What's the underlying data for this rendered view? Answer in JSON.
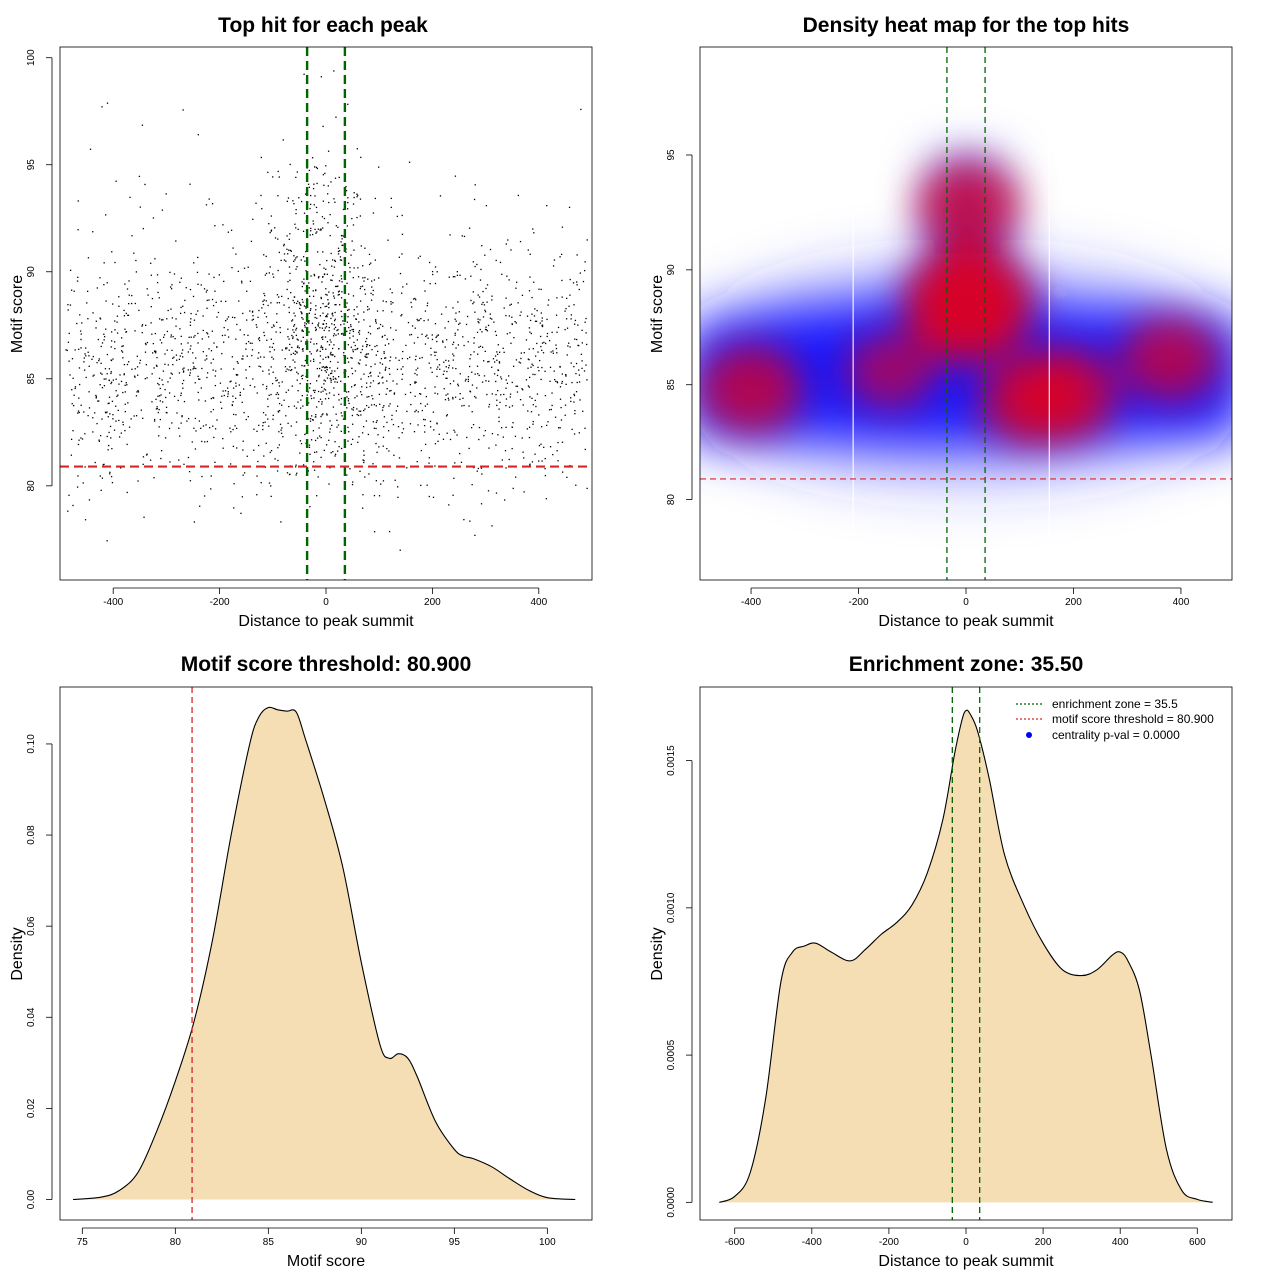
{
  "colors": {
    "points": "#000000",
    "threshold_red": "#d62728",
    "zone_green": "#006400",
    "density_fill": "#f5deb3",
    "heat_blue": "#0000ff",
    "heat_red": "#e0001e"
  },
  "chart_data": [
    {
      "id": "scatter",
      "type": "scatter",
      "title": "Top hit for each peak",
      "xlabel": "Distance to peak summit",
      "ylabel": "Motif score",
      "xlim": [
        -500,
        500
      ],
      "ylim": [
        75.6,
        100.5
      ],
      "xticks": [
        -400,
        -200,
        0,
        200,
        400
      ],
      "yticks": [
        80,
        85,
        90,
        95,
        100
      ],
      "threshold": 80.9,
      "zone": [
        -35.5,
        35.5
      ],
      "n_points": 2400
    },
    {
      "id": "heatmap",
      "type": "heatmap",
      "title": "Density heat map for the top hits",
      "xlabel": "Distance to peak summit",
      "ylabel": "Motif score",
      "xlim": [
        -495,
        495
      ],
      "ylim": [
        76.5,
        99.7
      ],
      "xticks": [
        -400,
        -200,
        0,
        200,
        400
      ],
      "yticks": [
        80,
        85,
        90,
        95
      ],
      "threshold": 80.9,
      "zone": [
        -35.5,
        35.5
      ],
      "white_lines_x": [
        -210,
        155
      ],
      "hotspots": [
        {
          "x": 5,
          "y": 88.5,
          "weight": 1.0
        },
        {
          "x": 5,
          "y": 92.8,
          "weight": 0.6
        },
        {
          "x": 180,
          "y": 84.6,
          "weight": 0.7
        },
        {
          "x": 120,
          "y": 84.3,
          "weight": 0.6
        },
        {
          "x": -400,
          "y": 84.8,
          "weight": 0.6
        },
        {
          "x": 380,
          "y": 86.1,
          "weight": 0.55
        },
        {
          "x": -140,
          "y": 85.6,
          "weight": 0.4
        }
      ]
    },
    {
      "id": "score_density",
      "type": "area",
      "title": "Motif score threshold: 80.900",
      "xlabel": "Motif score",
      "ylabel": "Density",
      "xlim": [
        73.8,
        102.4
      ],
      "ylim": [
        -0.0045,
        0.1125
      ],
      "xticks": [
        75,
        80,
        85,
        90,
        95,
        100
      ],
      "yticks": [
        0.0,
        0.02,
        0.04,
        0.06,
        0.08,
        0.1
      ],
      "ytick_labels": [
        "0.00",
        "0.02",
        "0.04",
        "0.06",
        "0.08",
        "0.10"
      ],
      "threshold": 80.9,
      "x": [
        74.5,
        76,
        77,
        78,
        79,
        80,
        81,
        82,
        83,
        84,
        84.5,
        85,
        85.5,
        86,
        86.5,
        87,
        88,
        89,
        90,
        91,
        91.5,
        92,
        92.5,
        93,
        94,
        95,
        95.5,
        96,
        97,
        98,
        99,
        100,
        101.5
      ],
      "y": [
        0.0,
        0.0005,
        0.002,
        0.006,
        0.015,
        0.026,
        0.039,
        0.057,
        0.08,
        0.1,
        0.106,
        0.108,
        0.1075,
        0.1072,
        0.107,
        0.101,
        0.088,
        0.073,
        0.052,
        0.034,
        0.031,
        0.032,
        0.031,
        0.027,
        0.017,
        0.011,
        0.0095,
        0.009,
        0.0072,
        0.0045,
        0.002,
        0.0004,
        0.0
      ]
    },
    {
      "id": "distance_density",
      "type": "area",
      "title": "Enrichment zone: 35.50",
      "xlabel": "Distance to peak summit",
      "ylabel": "Density",
      "xlim": [
        -690,
        690
      ],
      "ylim": [
        -6e-05,
        0.00175
      ],
      "xticks": [
        -600,
        -400,
        -200,
        0,
        200,
        400,
        600
      ],
      "yticks": [
        0.0,
        0.0005,
        0.001,
        0.0015
      ],
      "ytick_labels": [
        "0.0000",
        "0.0005",
        "0.0010",
        "0.0015"
      ],
      "zone": [
        -35.5,
        35.5
      ],
      "x": [
        -640,
        -600,
        -560,
        -520,
        -480,
        -450,
        -420,
        -390,
        -350,
        -300,
        -260,
        -220,
        -180,
        -140,
        -100,
        -60,
        -30,
        -10,
        0,
        10,
        30,
        60,
        100,
        150,
        200,
        250,
        300,
        340,
        380,
        400,
        420,
        450,
        480,
        520,
        560,
        600,
        640
      ],
      "y": [
        0.0,
        2e-05,
        0.0001,
        0.00035,
        0.00075,
        0.00085,
        0.00087,
        0.00088,
        0.00085,
        0.00082,
        0.00086,
        0.00091,
        0.00095,
        0.00101,
        0.00112,
        0.0013,
        0.00152,
        0.00164,
        0.00167,
        0.00166,
        0.0016,
        0.00144,
        0.00118,
        0.00101,
        0.00088,
        0.00079,
        0.00077,
        0.00079,
        0.00084,
        0.00085,
        0.00082,
        0.00072,
        0.0005,
        0.00018,
        4e-05,
        1e-05,
        0.0
      ]
    }
  ],
  "legend": {
    "items": [
      {
        "label": "enrichment zone = 35.5",
        "kind": "dotted-line",
        "color": "#006400"
      },
      {
        "label": "motif score threshold = 80.900",
        "kind": "dotted-line",
        "color": "#d62728"
      },
      {
        "label": "centrality p-val = 0.0000",
        "kind": "dot",
        "color": "#0000ff"
      }
    ]
  }
}
